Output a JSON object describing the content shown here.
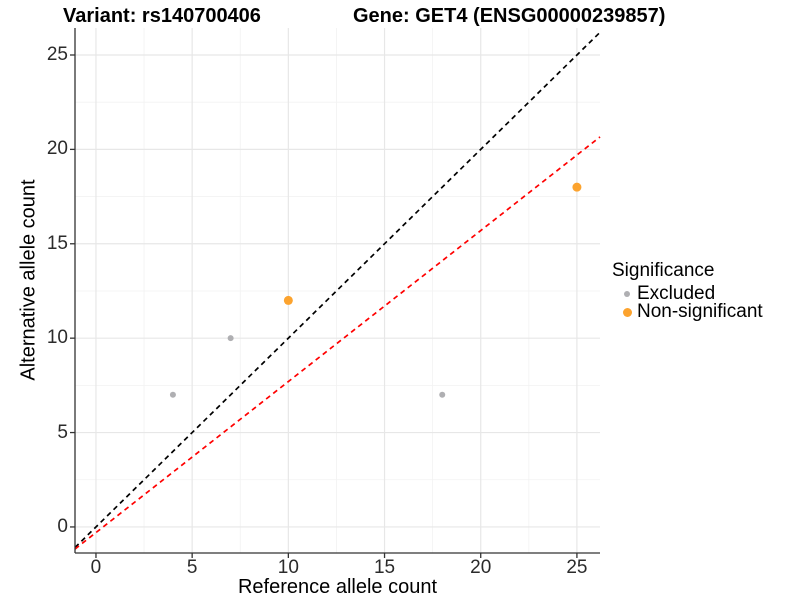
{
  "titles": {
    "variant": "Variant: rs140700406",
    "gene": "Gene: GET4 (ENSG00000239857)"
  },
  "axes": {
    "x": {
      "label": "Reference allele count",
      "tick_labels": [
        "0",
        "5",
        "10",
        "15",
        "20",
        "25"
      ]
    },
    "y": {
      "label": "Alternative allele count",
      "tick_labels": [
        "0",
        "5",
        "10",
        "15",
        "20",
        "25"
      ]
    }
  },
  "legend": {
    "title": "Significance",
    "items": [
      {
        "label": "Excluded",
        "color": "#AFAFB2",
        "size": 3
      },
      {
        "label": "Non-significant",
        "color": "#FCA32E",
        "size": 4.5
      }
    ]
  },
  "colors": {
    "background": "#ffffff",
    "grid_major": "#E7E7E7",
    "grid_minor": "#F2F2F2",
    "axis_line": "#333333",
    "identity_line": "#000000",
    "fit_line": "#FF0000",
    "excluded_point": "#AFAFB2",
    "nonsignificant_point": "#FCA32E"
  },
  "chart_data": {
    "type": "scatter",
    "title": "Variant: rs140700406  |  Gene: GET4 (ENSG00000239857)",
    "xlabel": "Reference allele count",
    "ylabel": "Alternative allele count",
    "xlim": [
      -1.09,
      26.2
    ],
    "ylim": [
      -1.38,
      26.43
    ],
    "x_ticks": [
      0,
      5,
      10,
      15,
      20,
      25
    ],
    "y_ticks": [
      0,
      5,
      10,
      15,
      20,
      25
    ],
    "grid": {
      "major": true,
      "minor": true
    },
    "legend_position": "right",
    "series": [
      {
        "name": "Excluded",
        "color": "#AFAFB2",
        "size": 3,
        "points": [
          [
            4,
            7
          ],
          [
            7,
            10
          ],
          [
            18,
            7
          ]
        ]
      },
      {
        "name": "Non-significant",
        "color": "#FCA32E",
        "size": 4.5,
        "points": [
          [
            10,
            12
          ],
          [
            25,
            18
          ]
        ]
      }
    ],
    "lines": [
      {
        "name": "identity",
        "style": "dashed",
        "color": "#000000",
        "equation": "y = x",
        "x1": -1.09,
        "y1": -1.09,
        "x2": 26.2,
        "y2": 26.2
      },
      {
        "name": "fit",
        "style": "dashed",
        "color": "#FF0000",
        "equation": "y = 0.8x - 0.3",
        "x1": -1.09,
        "y1": -1.17,
        "x2": 26.2,
        "y2": 20.66
      }
    ]
  }
}
